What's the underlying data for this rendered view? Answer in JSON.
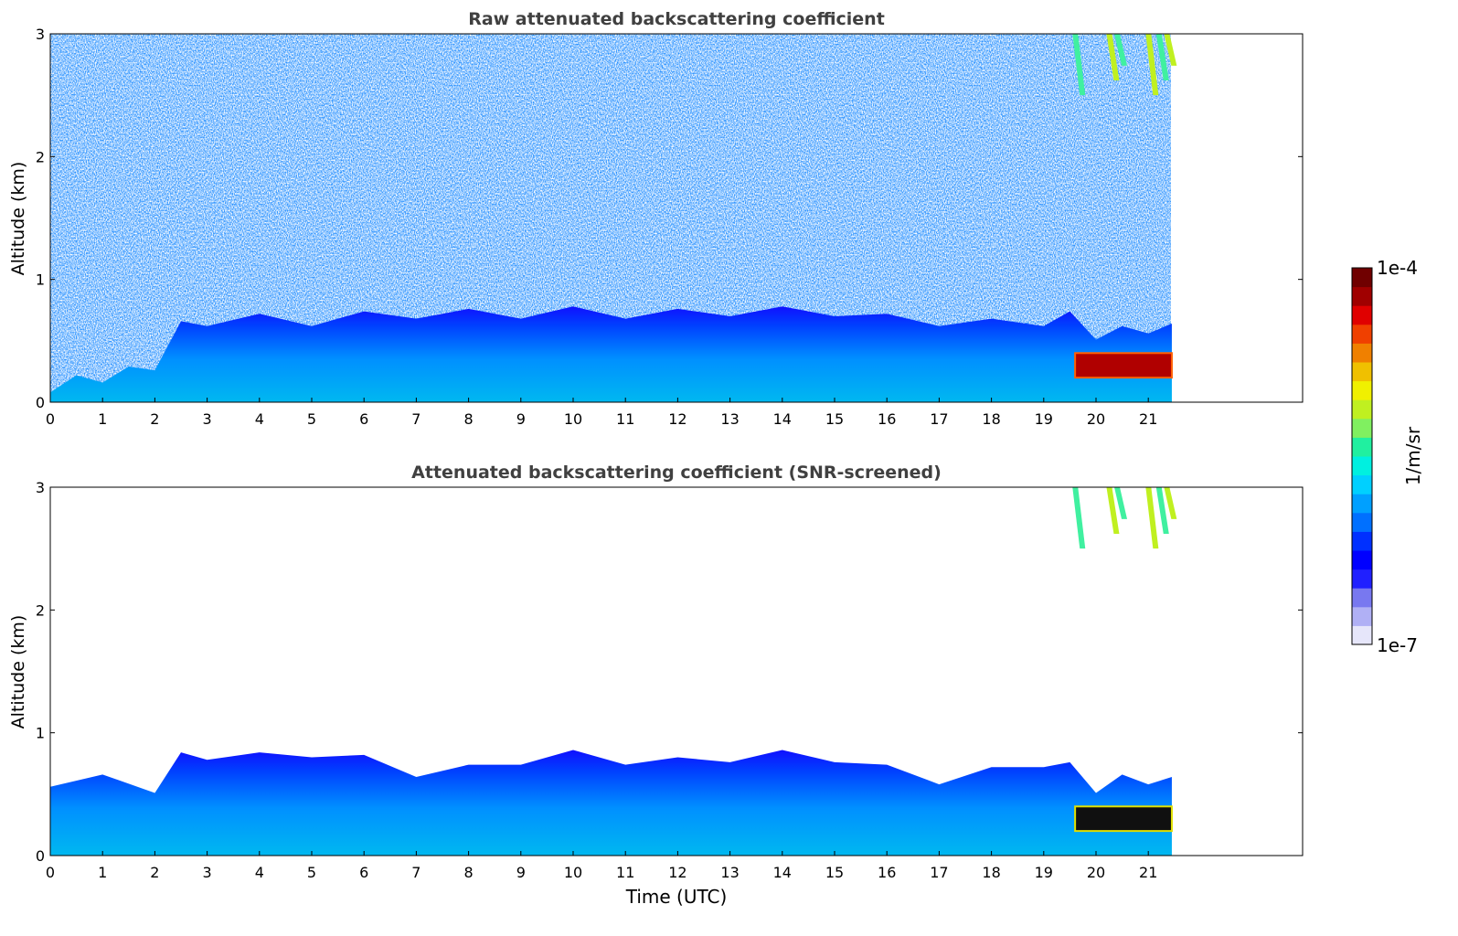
{
  "chart_data": [
    {
      "type": "heatmap",
      "title": "Raw attenuated backscattering coefficient",
      "xlabel": "",
      "ylabel": "Altitude (km)",
      "xlim": [
        0,
        24
      ],
      "ylim": [
        0,
        3
      ],
      "xticks": [
        "0",
        "1",
        "2",
        "3",
        "4",
        "5",
        "6",
        "7",
        "8",
        "9",
        "10",
        "11",
        "12",
        "13",
        "14",
        "15",
        "16",
        "17",
        "18",
        "19",
        "20",
        "21"
      ],
      "yticks": [
        "0",
        "1",
        "2",
        "3"
      ],
      "data_end_hour": 21.45,
      "boundary_layer_top_km": [
        [
          0,
          0.12
        ],
        [
          0.5,
          0.18
        ],
        [
          1,
          0.2
        ],
        [
          1.5,
          0.25
        ],
        [
          2,
          0.3
        ],
        [
          2.5,
          0.62
        ],
        [
          3,
          0.66
        ],
        [
          4,
          0.68
        ],
        [
          5,
          0.66
        ],
        [
          6,
          0.7
        ],
        [
          7,
          0.72
        ],
        [
          8,
          0.72
        ],
        [
          9,
          0.72
        ],
        [
          10,
          0.74
        ],
        [
          11,
          0.72
        ],
        [
          12,
          0.72
        ],
        [
          13,
          0.74
        ],
        [
          14,
          0.74
        ],
        [
          15,
          0.74
        ],
        [
          16,
          0.68
        ],
        [
          17,
          0.66
        ],
        [
          18,
          0.64
        ],
        [
          19,
          0.66
        ],
        [
          19.5,
          0.7
        ],
        [
          20,
          0.55
        ],
        [
          20.5,
          0.58
        ],
        [
          21,
          0.6
        ],
        [
          21.45,
          0.6
        ]
      ],
      "strong_layer": {
        "start_hour": 19.6,
        "end_hour": 21.45,
        "altitude_km": [
          0.2,
          0.4
        ]
      },
      "high_cloud": {
        "start_hour": 19.5,
        "end_hour": 21.45,
        "altitude_km": [
          2.5,
          3.0
        ]
      }
    },
    {
      "type": "heatmap",
      "title": "Attenuated backscattering coefficient (SNR-screened)",
      "xlabel": "Time (UTC)",
      "ylabel": "Altitude (km)",
      "xlim": [
        0,
        24
      ],
      "ylim": [
        0,
        3
      ],
      "xticks": [
        "0",
        "1",
        "2",
        "3",
        "4",
        "5",
        "6",
        "7",
        "8",
        "9",
        "10",
        "11",
        "12",
        "13",
        "14",
        "15",
        "16",
        "17",
        "18",
        "19",
        "20",
        "21"
      ],
      "yticks": [
        "0",
        "1",
        "2",
        "3"
      ],
      "data_end_hour": 21.45,
      "boundary_layer_top_km": [
        [
          0,
          0.6
        ],
        [
          1,
          0.62
        ],
        [
          2,
          0.55
        ],
        [
          2.5,
          0.8
        ],
        [
          3,
          0.82
        ],
        [
          4,
          0.8
        ],
        [
          5,
          0.84
        ],
        [
          6,
          0.78
        ],
        [
          7,
          0.68
        ],
        [
          8,
          0.7
        ],
        [
          9,
          0.78
        ],
        [
          10,
          0.82
        ],
        [
          11,
          0.78
        ],
        [
          12,
          0.76
        ],
        [
          13,
          0.8
        ],
        [
          14,
          0.82
        ],
        [
          15,
          0.8
        ],
        [
          16,
          0.7
        ],
        [
          17,
          0.62
        ],
        [
          18,
          0.68
        ],
        [
          19,
          0.76
        ],
        [
          19.5,
          0.72
        ],
        [
          20,
          0.55
        ],
        [
          20.5,
          0.62
        ],
        [
          21,
          0.62
        ],
        [
          21.45,
          0.6
        ]
      ],
      "strong_layer": {
        "start_hour": 19.6,
        "end_hour": 21.45,
        "altitude_km": [
          0.2,
          0.4
        ]
      },
      "high_cloud": {
        "start_hour": 19.5,
        "end_hour": 21.45,
        "altitude_km": [
          2.5,
          3.0
        ]
      }
    }
  ],
  "colorbar": {
    "max_label": "1e-4",
    "min_label": "1e-7",
    "unit_label": "1/m/sr",
    "colors": [
      "#e6e6fa",
      "#b0b0f5",
      "#7878f0",
      "#2020ff",
      "#0000ff",
      "#0030ff",
      "#0070ff",
      "#00a0ff",
      "#00d0ff",
      "#00f0e0",
      "#20f0a0",
      "#80f060",
      "#c0f020",
      "#f0f000",
      "#f0c000",
      "#f08000",
      "#f04000",
      "#e00000",
      "#a00000",
      "#700000"
    ]
  }
}
